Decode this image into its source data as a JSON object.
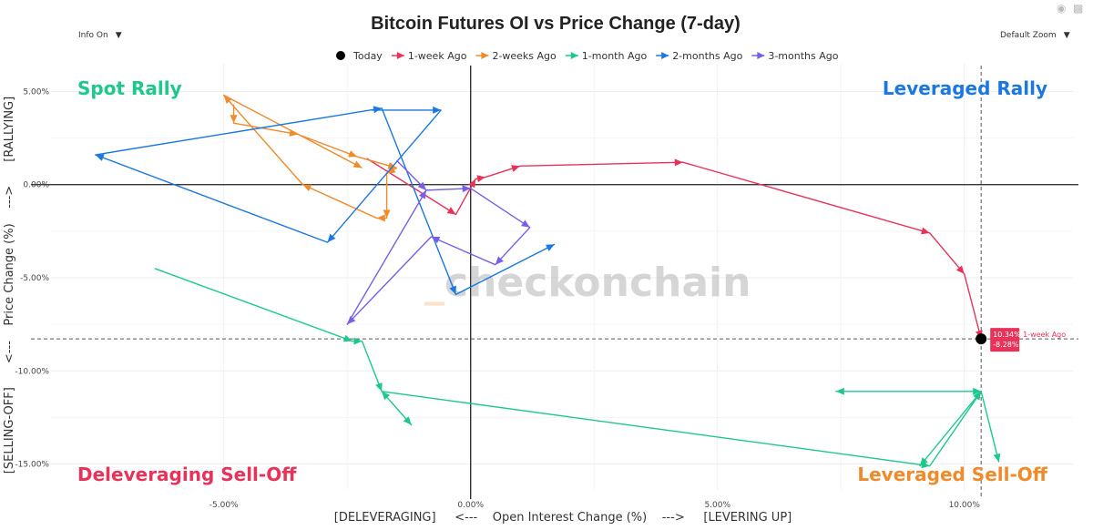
{
  "controls": {
    "info_label": "Info On",
    "zoom_label": "Default Zoom"
  },
  "toolbar": {
    "camera_icon": "camera-icon",
    "chart_icon": "bar-chart-icon"
  },
  "watermark": "_checkonchain",
  "quadrants": {
    "top_left": {
      "label": "Spot Rally",
      "color": "#1dc98a"
    },
    "top_right": {
      "label": "Leveraged Rally",
      "color": "#1a78e0"
    },
    "bottom_left": {
      "label": "Deleveraging Sell-Off",
      "color": "#e8325a"
    },
    "bottom_right": {
      "label": "Leveraged Sell-Off",
      "color": "#f08a2a"
    }
  },
  "tooltip": {
    "x_text": "10.34%",
    "y_text": "-8.28%",
    "series": "1-week Ago"
  },
  "chart_data": {
    "type": "line",
    "title": "Bitcoin Futures OI vs Price Change (7-day)",
    "xlabel": "[DELEVERAGING]     <---    Open Interest Change (%)    --->     [LEVERING UP]",
    "ylabel_parts": [
      "[SELLING-OFF]",
      "<---    Price Change (%)    --->",
      "[RALLYING]"
    ],
    "xlim": [
      -8.5,
      12.2
    ],
    "ylim": [
      -15.9,
      6.0
    ],
    "xticks": [
      -5,
      0,
      5,
      10
    ],
    "xtick_labels": [
      "-5.00%",
      "0.00%",
      "5.00%",
      "10.00%"
    ],
    "yticks": [
      5,
      0,
      -5,
      -10,
      -15
    ],
    "ytick_labels": [
      "5.00%",
      "0.00%",
      "-5.00%",
      "-10.00%",
      "-15.00%"
    ],
    "legend_position": "top-center",
    "today": {
      "name": "Today",
      "x": 10.34,
      "y": -8.28,
      "color": "#000000"
    },
    "series": [
      {
        "name": "1-week Ago",
        "color": "#e8325a",
        "x": [
          -2.1,
          -0.3,
          0.1,
          0.3,
          1.0,
          4.3,
          9.3,
          10.0,
          10.34
        ],
        "y": [
          1.4,
          -1.6,
          0.3,
          0.4,
          1.0,
          1.2,
          -2.6,
          -4.8,
          -8.28
        ]
      },
      {
        "name": "2-weeks Ago",
        "color": "#f08a2a",
        "x": [
          -4.8,
          -4.8,
          -3.5,
          -2.3,
          -1.5,
          -1.7,
          -1.7,
          -1.9,
          -3.4,
          -5.0,
          -5.0,
          -2.2
        ],
        "y": [
          4.3,
          3.3,
          2.7,
          1.5,
          0.9,
          0.6,
          -1.8,
          -1.8,
          0.0,
          4.8,
          4.8,
          0.9
        ]
      },
      {
        "name": "1-month Ago",
        "color": "#1dc98a",
        "x": [
          -6.4,
          -2.4,
          -2.2,
          -1.8,
          -1.8,
          -1.2,
          -1.8,
          9.3,
          10.34,
          7.4,
          10.34,
          9.1,
          10.34,
          10.7
        ],
        "y": [
          -4.5,
          -8.4,
          -8.4,
          -11.1,
          -11.1,
          -12.9,
          -11.1,
          -15.1,
          -11.1,
          -11.1,
          -11.1,
          -15.1,
          -11.1,
          -14.9
        ]
      },
      {
        "name": "2-months Ago",
        "color": "#1a78e0",
        "x": [
          -2.0,
          -0.6,
          -0.6,
          -2.9,
          -7.6,
          -1.8,
          -1.8,
          -0.3,
          1.7
        ],
        "y": [
          4.0,
          4.0,
          4.0,
          -3.1,
          1.6,
          4.1,
          4.1,
          -5.9,
          -3.2
        ]
      },
      {
        "name": "3-months Ago",
        "color": "#7a5de8",
        "x": [
          -1.5,
          -0.9,
          0.0,
          1.2,
          0.5,
          -0.8,
          -0.8,
          -2.5,
          -0.9
        ],
        "y": [
          1.3,
          -0.3,
          -0.2,
          -2.3,
          -4.3,
          -2.8,
          -2.8,
          -7.5,
          -0.3
        ]
      }
    ]
  }
}
